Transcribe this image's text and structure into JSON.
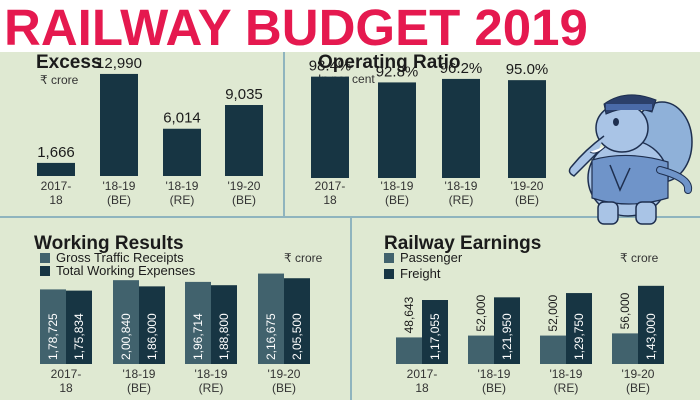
{
  "headline": "RAILWAY BUDGET 2019",
  "colors": {
    "headline": "#e5194f",
    "panel_bg": "#dfe9d2",
    "dark_bar": "#173543",
    "light_bar": "#41626d",
    "divider": "#8fb4be"
  },
  "mascot": {
    "icon": "elephant-mascot-icon"
  },
  "chart_data": [
    {
      "type": "bar",
      "title": "Excess",
      "unit_label": "₹ crore",
      "categories": [
        "2017-\n18",
        "'18-19\n(BE)",
        "'18-19\n(RE)",
        "'19-20\n(BE)"
      ],
      "values": [
        1666,
        12990,
        6014,
        9035
      ],
      "value_labels": [
        "1,666",
        "12,990",
        "6,014",
        "9,035"
      ],
      "ylim": [
        0,
        14000
      ]
    },
    {
      "type": "bar",
      "title": "Operating Ratio",
      "unit_label": "In per cent",
      "categories": [
        "2017-\n18",
        "'18-19\n(BE)",
        "'18-19\n(RE)",
        "'19-20\n(BE)"
      ],
      "values": [
        98.4,
        92.8,
        96.2,
        95.0
      ],
      "value_labels": [
        "98.4%",
        "92.8%",
        "96.2%",
        "95.0%"
      ],
      "ylim": [
        0,
        100
      ]
    },
    {
      "type": "bar",
      "title": "Working Results",
      "unit_label": "₹ crore",
      "categories": [
        "2017-\n18",
        "'18-19\n(BE)",
        "'18-19\n(RE)",
        "'19-20\n(BE)"
      ],
      "series": [
        {
          "name": "Gross Traffic Receipts",
          "values": [
            178725,
            200840,
            196714,
            216675
          ],
          "value_labels": [
            "1,78,725",
            "2,00,840",
            "1,96,714",
            "2,16,675"
          ]
        },
        {
          "name": "Total Working Expenses",
          "values": [
            175834,
            186000,
            188800,
            205500
          ],
          "value_labels": [
            "1,75,834",
            "1,86,000",
            "1,88,800",
            "2,05,500"
          ]
        }
      ],
      "ylim": [
        0,
        230000
      ],
      "legend": "top-left"
    },
    {
      "type": "bar",
      "title": "Railway Earnings",
      "unit_label": "₹ crore",
      "categories": [
        "2017-\n18",
        "'18-19\n(BE)",
        "'18-19\n(RE)",
        "'19-20\n(BE)"
      ],
      "series": [
        {
          "name": "Passenger",
          "values": [
            48643,
            52000,
            52000,
            56000
          ],
          "value_labels": [
            "48,643",
            "52,000",
            "52,000",
            "56,000"
          ]
        },
        {
          "name": "Freight",
          "values": [
            117055,
            121950,
            129750,
            143000
          ],
          "value_labels": [
            "1,17,055",
            "1,21,950",
            "1,29,750",
            "1,43,000"
          ]
        }
      ],
      "ylim": [
        0,
        150000
      ],
      "legend": "top-left"
    }
  ]
}
